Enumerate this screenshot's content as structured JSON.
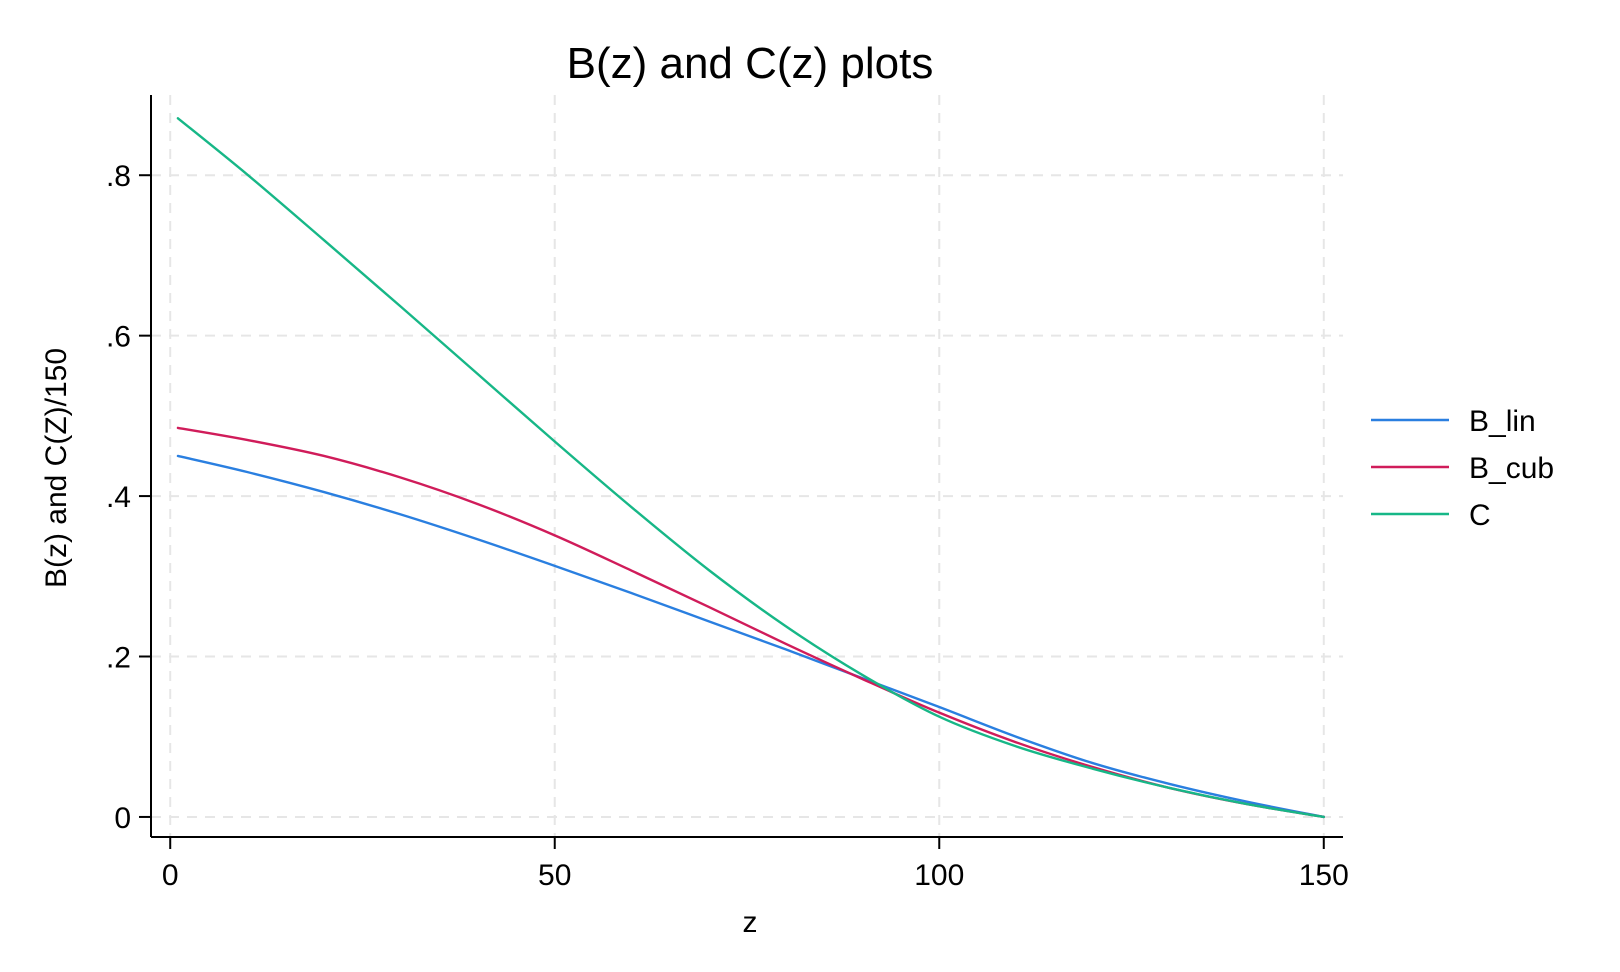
{
  "chart_data": {
    "type": "line",
    "title": "B(z) and C(z) plots",
    "xlabel": "z",
    "ylabel": "B(z) and C(Z)/150",
    "xlim": [
      -2.5,
      152.5
    ],
    "ylim": [
      -0.025,
      0.9
    ],
    "x_ticks": [
      0,
      50,
      100,
      150
    ],
    "x_tick_labels": [
      "0",
      "50",
      "100",
      "150"
    ],
    "y_ticks": [
      0,
      0.2,
      0.4,
      0.6,
      0.8
    ],
    "y_tick_labels": [
      "0",
      ".2",
      ".4",
      ".6",
      ".8"
    ],
    "grid": true,
    "legend_position": "right",
    "x": [
      1,
      10,
      20,
      30,
      40,
      50,
      60,
      70,
      80,
      90,
      100,
      110,
      120,
      130,
      140,
      150
    ],
    "series": [
      {
        "name": "B_lin",
        "color": "#2a7fe0",
        "values": [
          0.45,
          0.43,
          0.405,
          0.377,
          0.346,
          0.313,
          0.279,
          0.244,
          0.209,
          0.173,
          0.137,
          0.1,
          0.067,
          0.041,
          0.019,
          0.0
        ]
      },
      {
        "name": "B_cub",
        "color": "#d01c5a",
        "values": [
          0.485,
          0.47,
          0.45,
          0.423,
          0.39,
          0.351,
          0.307,
          0.262,
          0.216,
          0.172,
          0.13,
          0.093,
          0.062,
          0.036,
          0.016,
          0.0
        ]
      },
      {
        "name": "C",
        "color": "#17b787",
        "values": [
          0.871,
          0.801,
          0.719,
          0.636,
          0.552,
          0.468,
          0.386,
          0.308,
          0.238,
          0.177,
          0.125,
          0.088,
          0.06,
          0.036,
          0.016,
          0.0
        ]
      }
    ]
  }
}
